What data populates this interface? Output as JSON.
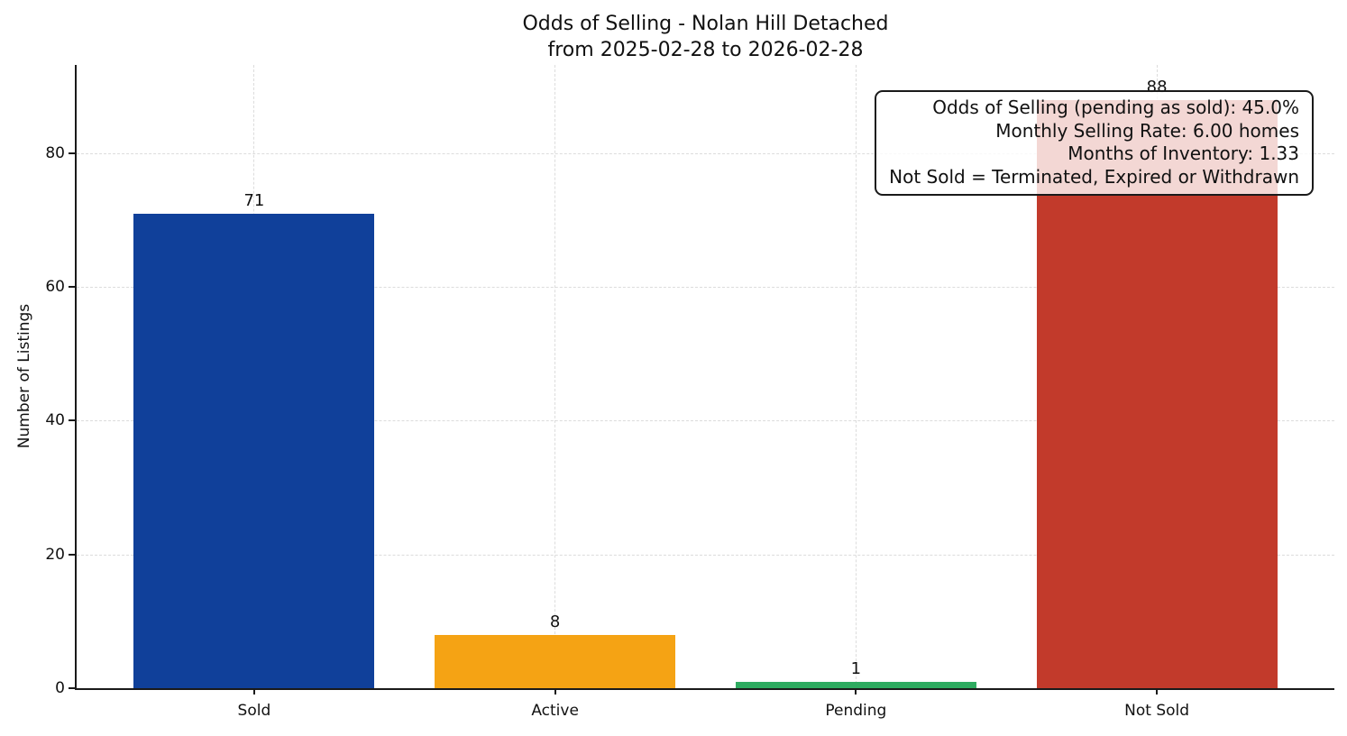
{
  "chart_data": {
    "type": "bar",
    "title": "Odds of Selling - Nolan Hill Detached",
    "subtitle": "from 2025-02-28 to 2026-02-28",
    "categories": [
      "Sold",
      "Active",
      "Pending",
      "Not Sold"
    ],
    "values": [
      71,
      8,
      1,
      88
    ],
    "bar_colors": [
      "#10409a",
      "#f5a314",
      "#2eab60",
      "#c23a2b"
    ],
    "xlabel": "",
    "ylabel": "Number of Listings",
    "yticks": [
      0,
      20,
      40,
      60,
      80
    ],
    "ylim": [
      0,
      93.2
    ],
    "grid": "dashed, horizontal at yticks and vertical at bar centers",
    "legend": "none",
    "annotation": {
      "position": "top-right",
      "lines": [
        "Odds of Selling (pending as sold): 45.0%",
        "Monthly Selling Rate: 6.00 homes",
        "Months of Inventory: 1.33",
        "Not Sold = Terminated, Expired or Withdrawn"
      ]
    }
  },
  "colors": {
    "axis": "#1a1a1a",
    "grid": "#dcdcdc",
    "background": "#ffffff",
    "annotation_border": "#1a1a1a",
    "annotation_background": "rgba(255,255,255,0.8)"
  }
}
